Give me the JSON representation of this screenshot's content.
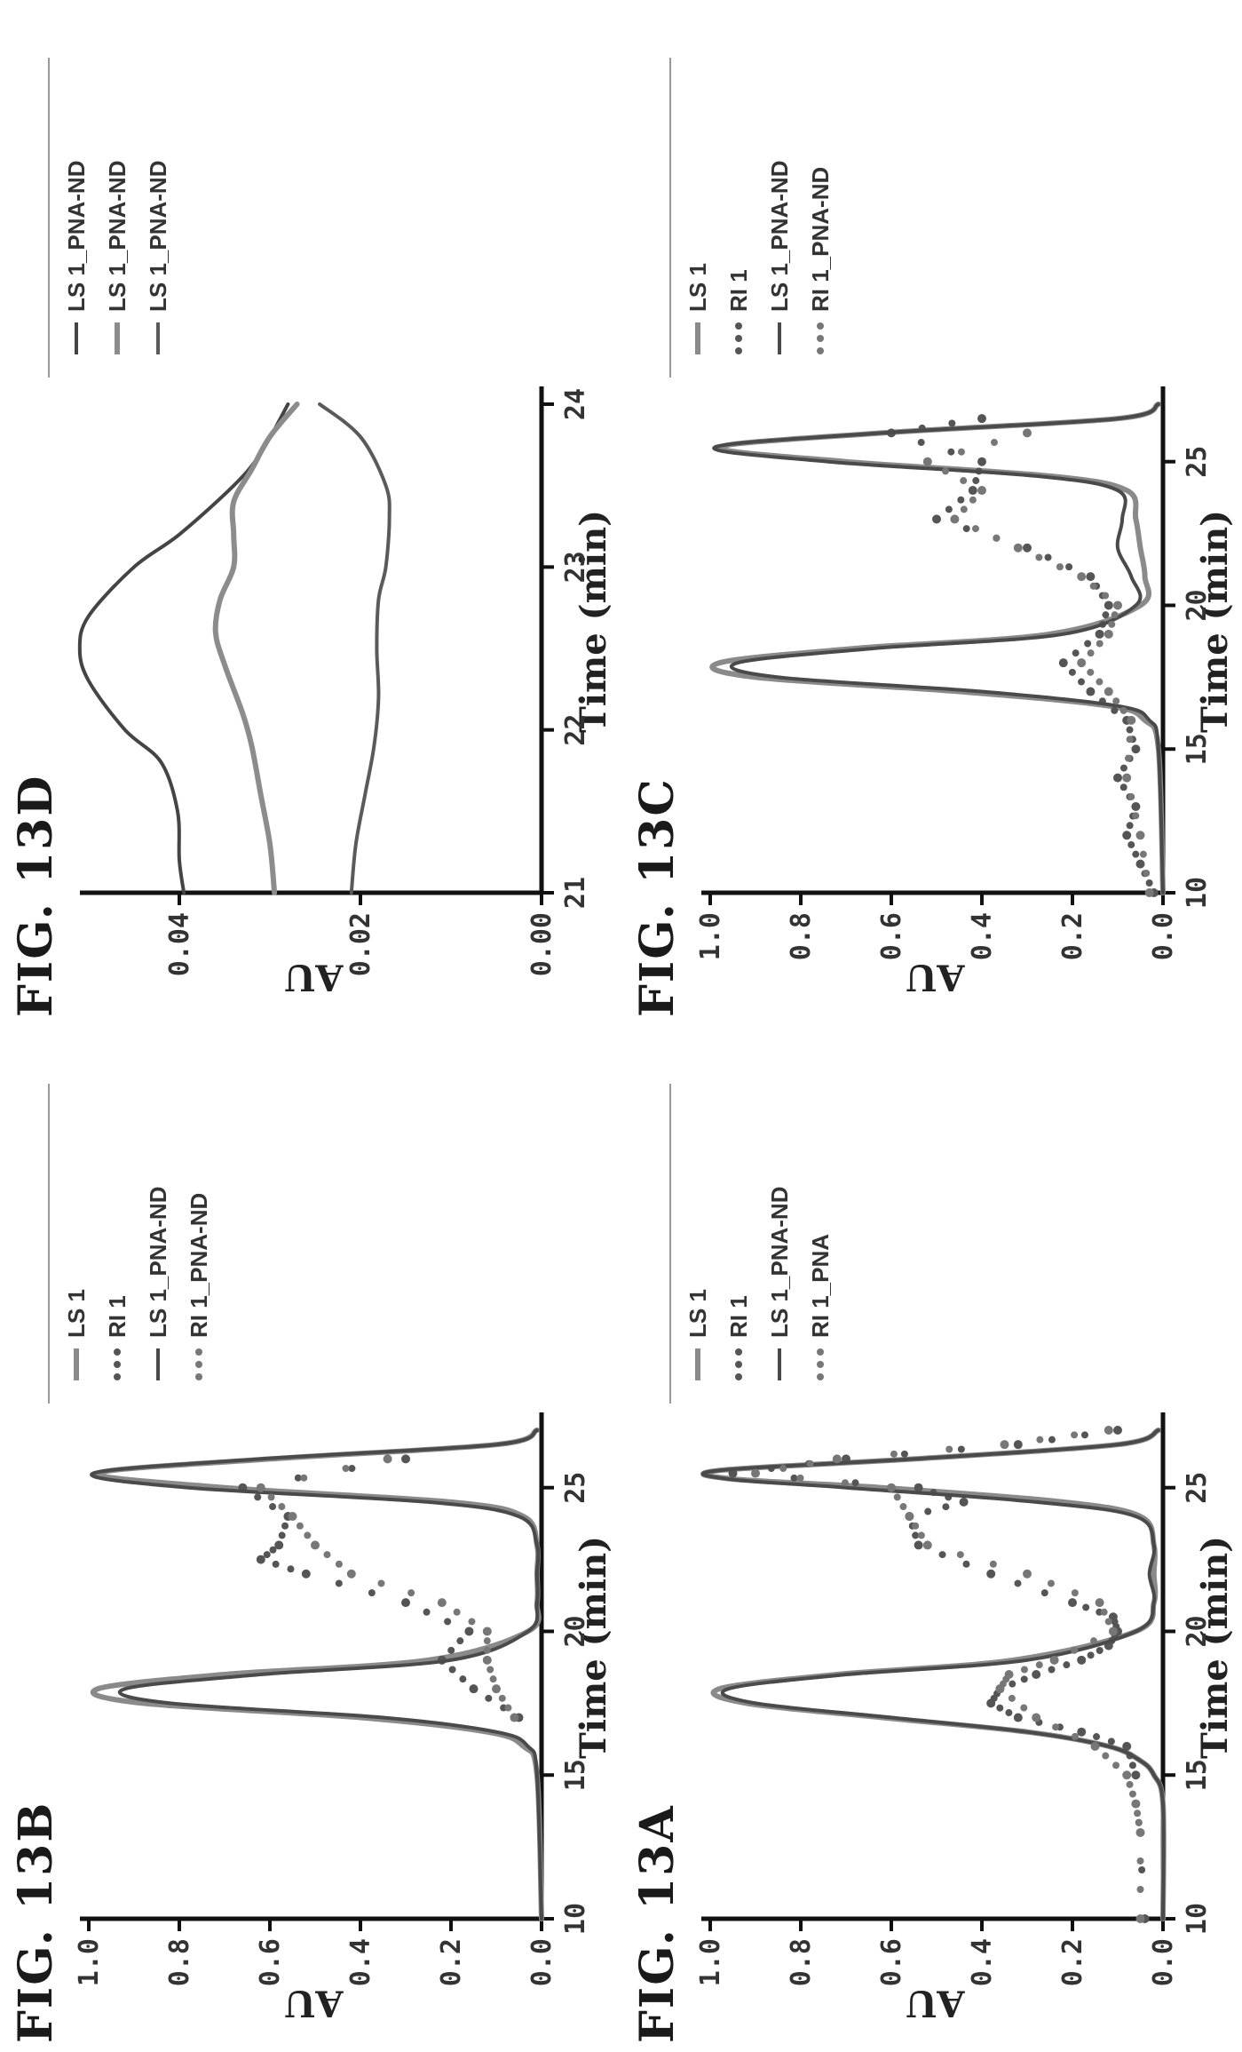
{
  "chart_data": [
    {
      "id": "13A",
      "type": "line",
      "title": "FIG. 13A",
      "xlabel": "Time (min)",
      "ylabel": "AU",
      "xlim": [
        10,
        27
      ],
      "ylim": [
        0,
        1.0
      ],
      "xticks": [
        "10",
        "15",
        "20",
        "25"
      ],
      "yticks": [
        "0.0",
        "0.2",
        "0.4",
        "0.6",
        "0.8",
        "1.0"
      ],
      "legend_position": "top-right",
      "series": [
        {
          "name": "LS 1",
          "style": "solid-light",
          "color": "#8a8a8a",
          "x": [
            10,
            14,
            15,
            15.5,
            16,
            16.5,
            17,
            17.5,
            18,
            18.5,
            19,
            20,
            21,
            22,
            23,
            24,
            24.5,
            25,
            25.3,
            25.6,
            26,
            26.5,
            27
          ],
          "y": [
            0,
            0,
            0.02,
            0.05,
            0.12,
            0.3,
            0.62,
            0.92,
            0.98,
            0.72,
            0.33,
            0.06,
            0.02,
            0.02,
            0.02,
            0.05,
            0.22,
            0.62,
            0.95,
            0.98,
            0.55,
            0.1,
            0.01
          ]
        },
        {
          "name": "RI 1",
          "style": "dotted",
          "color": "#555555",
          "x": [
            10,
            15,
            16,
            16.5,
            17,
            17.5,
            18,
            18.5,
            19,
            19.5,
            20,
            20.5,
            21,
            22,
            23,
            24,
            24.5,
            25,
            25.5,
            26,
            26.5,
            27
          ],
          "y": [
            0.04,
            0.06,
            0.08,
            0.18,
            0.32,
            0.38,
            0.36,
            0.28,
            0.18,
            0.12,
            0.1,
            0.11,
            0.2,
            0.38,
            0.54,
            0.56,
            0.44,
            0.54,
            0.95,
            0.7,
            0.32,
            0.1
          ]
        },
        {
          "name": "LS 1_PNA-ND",
          "style": "solid-dark",
          "color": "#4a4a4a",
          "x": [
            10,
            14,
            15,
            15.5,
            16,
            16.5,
            17,
            17.5,
            18,
            18.5,
            19,
            20,
            21,
            22,
            23,
            24,
            24.5,
            25,
            25.3,
            25.6,
            26,
            26.5,
            27
          ],
          "y": [
            0,
            0,
            0.02,
            0.05,
            0.12,
            0.3,
            0.6,
            0.9,
            0.96,
            0.7,
            0.3,
            0.06,
            0.02,
            0.03,
            0.02,
            0.06,
            0.28,
            0.7,
            0.96,
            0.98,
            0.55,
            0.1,
            0.01
          ]
        },
        {
          "name": "RI 1_PNA",
          "style": "dotted",
          "color": "#777777",
          "x": [
            10,
            13,
            14,
            15,
            16,
            17,
            18,
            18.5,
            19,
            20,
            21,
            22,
            23,
            24,
            25,
            25.5,
            26,
            26.5,
            27
          ],
          "y": [
            0.05,
            0.05,
            0.06,
            0.08,
            0.15,
            0.28,
            0.36,
            0.34,
            0.24,
            0.11,
            0.14,
            0.3,
            0.52,
            0.56,
            0.6,
            0.9,
            0.72,
            0.35,
            0.12
          ]
        }
      ]
    },
    {
      "id": "13B",
      "type": "line",
      "title": "FIG. 13B",
      "xlabel": "Time (min)",
      "ylabel": "AU",
      "xlim": [
        10,
        27
      ],
      "ylim": [
        0,
        1.0
      ],
      "xticks": [
        "10",
        "15",
        "20",
        "25"
      ],
      "yticks": [
        "0.0",
        "0.2",
        "0.4",
        "0.6",
        "0.8",
        "1.0"
      ],
      "legend_position": "top-right",
      "series": [
        {
          "name": "LS 1",
          "style": "solid-light",
          "color": "#8a8a8a",
          "x": [
            10,
            15,
            16,
            16.5,
            17,
            17.5,
            18,
            18.5,
            19,
            20,
            21,
            22,
            23,
            24,
            24.5,
            25,
            25.5,
            26,
            26.5,
            27
          ],
          "y": [
            0,
            0.01,
            0.04,
            0.12,
            0.4,
            0.88,
            0.98,
            0.7,
            0.25,
            0.03,
            0.01,
            0.01,
            0.01,
            0.04,
            0.2,
            0.7,
            0.98,
            0.6,
            0.1,
            0.01
          ]
        },
        {
          "name": "RI 1",
          "style": "dotted",
          "color": "#555555",
          "x": [
            17,
            18,
            19,
            20,
            21,
            22,
            22.5,
            23,
            24,
            25,
            26
          ],
          "y": [
            0.05,
            0.15,
            0.22,
            0.16,
            0.3,
            0.52,
            0.62,
            0.58,
            0.56,
            0.66,
            0.3
          ]
        },
        {
          "name": "LS 1_PNA-ND",
          "style": "solid-dark",
          "color": "#4a4a4a",
          "x": [
            10,
            15,
            16,
            16.5,
            17,
            17.5,
            18,
            18.5,
            19,
            20,
            21,
            22,
            23,
            24,
            24.5,
            25,
            25.5,
            26,
            26.5,
            27
          ],
          "y": [
            0,
            0.01,
            0.03,
            0.1,
            0.35,
            0.82,
            0.92,
            0.62,
            0.2,
            0.03,
            0.01,
            0.01,
            0.01,
            0.05,
            0.25,
            0.78,
            0.99,
            0.62,
            0.1,
            0.01
          ]
        },
        {
          "name": "RI 1_PNA-ND",
          "style": "dotted",
          "color": "#777777",
          "x": [
            17,
            18,
            19,
            20,
            21,
            22,
            23,
            24,
            25,
            26
          ],
          "y": [
            0.06,
            0.1,
            0.12,
            0.12,
            0.22,
            0.42,
            0.5,
            0.55,
            0.62,
            0.34
          ]
        }
      ]
    },
    {
      "id": "13C",
      "type": "line",
      "title": "FIG. 13C",
      "xlabel": "Time (min)",
      "ylabel": "AU",
      "xlim": [
        10,
        27
      ],
      "ylim": [
        0,
        1.0
      ],
      "xticks": [
        "10",
        "15",
        "20",
        "25"
      ],
      "yticks": [
        "0.0",
        "0.2",
        "0.4",
        "0.6",
        "0.8",
        "1.0"
      ],
      "legend_position": "top-right",
      "series": [
        {
          "name": "LS 1",
          "style": "solid-light",
          "color": "#8a8a8a",
          "x": [
            10,
            15,
            16,
            16.5,
            17,
            17.5,
            18,
            18.5,
            19,
            20,
            21,
            22,
            23,
            24,
            24.5,
            25,
            25.5,
            26,
            26.5,
            27
          ],
          "y": [
            0,
            0.01,
            0.04,
            0.12,
            0.45,
            0.9,
            0.98,
            0.68,
            0.25,
            0.05,
            0.04,
            0.05,
            0.06,
            0.08,
            0.25,
            0.7,
            0.98,
            0.62,
            0.1,
            0.01
          ]
        },
        {
          "name": "RI 1",
          "style": "dotted",
          "color": "#555555",
          "x": [
            10,
            11,
            12,
            13,
            14,
            15,
            16,
            17,
            18,
            19,
            20,
            21,
            22,
            23,
            24,
            25,
            26,
            26.5
          ],
          "y": [
            0.02,
            0.05,
            0.08,
            0.06,
            0.1,
            0.06,
            0.08,
            0.16,
            0.22,
            0.14,
            0.12,
            0.16,
            0.3,
            0.5,
            0.42,
            0.4,
            0.6,
            0.4
          ]
        },
        {
          "name": "LS 1_PNA-ND",
          "style": "solid-dark",
          "color": "#4a4a4a",
          "x": [
            10,
            15,
            16,
            16.5,
            17,
            17.5,
            18,
            18.5,
            19,
            20,
            21,
            22,
            23,
            24,
            24.5,
            25,
            25.5,
            26,
            26.5,
            27
          ],
          "y": [
            0,
            0.01,
            0.03,
            0.1,
            0.4,
            0.85,
            0.94,
            0.64,
            0.22,
            0.06,
            0.07,
            0.1,
            0.09,
            0.1,
            0.28,
            0.74,
            0.99,
            0.62,
            0.1,
            0.01
          ]
        },
        {
          "name": "RI 1_PNA-ND",
          "style": "dotted",
          "color": "#777777",
          "x": [
            10,
            12,
            14,
            16,
            17,
            18,
            19,
            20,
            21,
            22,
            23,
            24,
            25,
            26
          ],
          "y": [
            0.03,
            0.05,
            0.08,
            0.07,
            0.12,
            0.18,
            0.12,
            0.1,
            0.18,
            0.32,
            0.46,
            0.4,
            0.52,
            0.3
          ]
        }
      ]
    },
    {
      "id": "13D",
      "type": "line",
      "title": "FIG. 13D",
      "xlabel": "Time (min)",
      "ylabel": "AU",
      "xlim": [
        21,
        24
      ],
      "ylim": [
        0,
        0.05
      ],
      "xticks": [
        "21",
        "22",
        "23",
        "24"
      ],
      "yticks": [
        "0.00",
        "0.02",
        "0.04"
      ],
      "legend_position": "top-right",
      "series": [
        {
          "name": "LS 1_PNA-ND",
          "style": "solid-dark",
          "color": "#444444",
          "x": [
            21,
            21.2,
            21.5,
            21.8,
            22,
            22.3,
            22.5,
            22.7,
            23,
            23.2,
            23.5,
            23.7,
            24
          ],
          "y": [
            0.0395,
            0.04,
            0.0402,
            0.042,
            0.046,
            0.05,
            0.051,
            0.05,
            0.045,
            0.04,
            0.034,
            0.031,
            0.028
          ]
        },
        {
          "name": "LS 1_PNA-ND",
          "style": "solid-light",
          "color": "#8c8c8c",
          "x": [
            21,
            21.3,
            21.6,
            21.9,
            22.1,
            22.4,
            22.6,
            22.8,
            23,
            23.2,
            23.4,
            23.6,
            23.8,
            24
          ],
          "y": [
            0.0295,
            0.03,
            0.031,
            0.032,
            0.033,
            0.035,
            0.036,
            0.0355,
            0.034,
            0.034,
            0.034,
            0.032,
            0.03,
            0.027
          ]
        },
        {
          "name": "LS 1_PNA-ND",
          "style": "solid-dark",
          "color": "#5a5a5a",
          "x": [
            21,
            21.3,
            21.6,
            21.9,
            22.2,
            22.5,
            22.8,
            23,
            23.3,
            23.5,
            23.8,
            24
          ],
          "y": [
            0.021,
            0.0205,
            0.0195,
            0.0185,
            0.018,
            0.0182,
            0.018,
            0.0172,
            0.0168,
            0.0172,
            0.02,
            0.0245
          ]
        }
      ]
    }
  ]
}
